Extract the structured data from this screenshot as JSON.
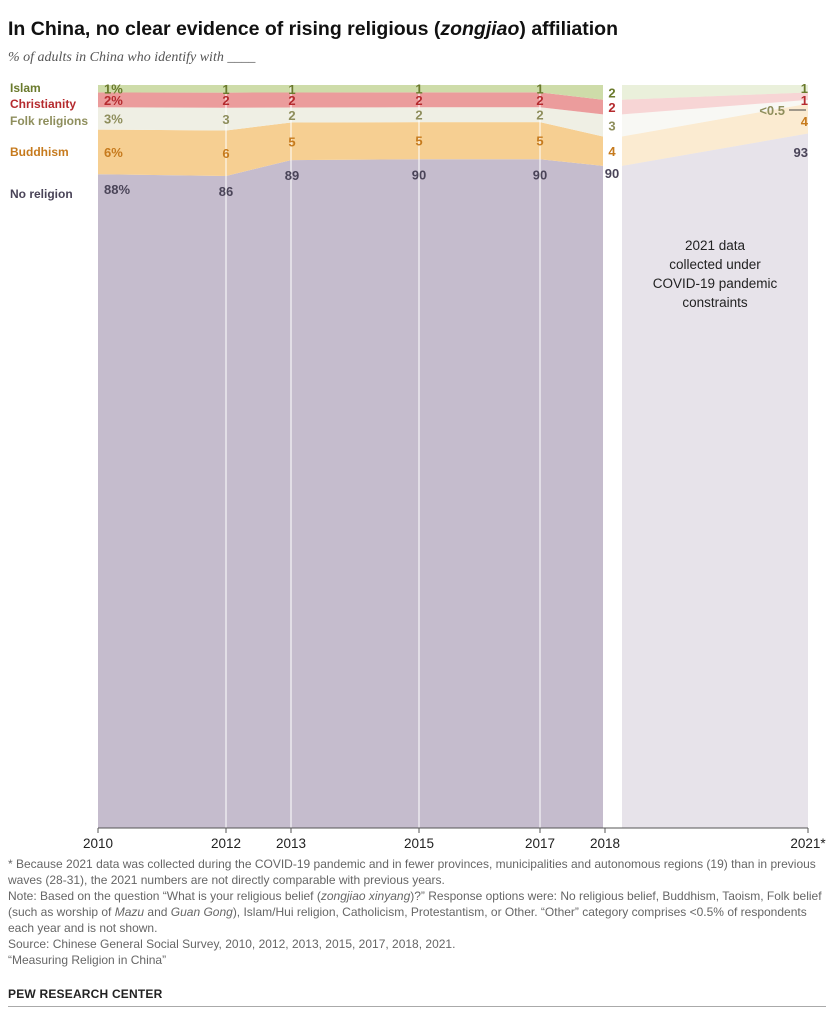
{
  "header": {
    "title_pre": "In China, no clear evidence of rising religious (",
    "title_em": "zongjiao",
    "title_post": ") affiliation",
    "subtitle": "% of adults in China who identify with ____"
  },
  "colors": {
    "no_religion": "#c5bccd",
    "buddhism": "#f6cf92",
    "folk": "#efefe4",
    "christianity": "#eb9c9c",
    "islam": "#cedca9",
    "label_no_religion": "#4a4458",
    "label_buddhism": "#c67a1d",
    "label_folk": "#8e8e5c",
    "label_christianity": "#b52a2e",
    "label_islam": "#6a7a2c"
  },
  "chart_data": {
    "type": "area",
    "stacked": true,
    "x": [
      "2010",
      "2012",
      "2013",
      "2015",
      "2017",
      "2018",
      "2021*"
    ],
    "series": [
      {
        "name": "No religion",
        "values": [
          88,
          86,
          89,
          90,
          90,
          90,
          93
        ],
        "labels": [
          "88%",
          "86",
          "89",
          "90",
          "90",
          "90",
          "93"
        ]
      },
      {
        "name": "Buddhism",
        "values": [
          6,
          6,
          5,
          5,
          5,
          4,
          4
        ],
        "labels": [
          "6%",
          "6",
          "5",
          "5",
          "5",
          "4",
          "4"
        ]
      },
      {
        "name": "Folk religions",
        "values": [
          3,
          3,
          2,
          2,
          2,
          3,
          0.5
        ],
        "labels": [
          "3%",
          "3",
          "2",
          "2",
          "2",
          "3",
          "<0.5"
        ]
      },
      {
        "name": "Christianity",
        "values": [
          2,
          2,
          2,
          2,
          2,
          2,
          1
        ],
        "labels": [
          "2%",
          "2",
          "2",
          "2",
          "2",
          "2",
          "1"
        ]
      },
      {
        "name": "Islam",
        "values": [
          1,
          1,
          1,
          1,
          1,
          2,
          1
        ],
        "labels": [
          "1%",
          "1",
          "1",
          "1",
          "1",
          "2",
          "1"
        ]
      }
    ],
    "ylim": [
      0,
      100
    ],
    "annotation": [
      "2021 data",
      "collected under",
      "COVID-19 pandemic",
      "constraints"
    ],
    "legend_placement": "left"
  },
  "footnotes": {
    "note1": "* Because 2021 data was collected during the COVID-19 pandemic and in fewer provinces, municipalities and autonomous regions (19) than in previous waves (28-31), the 2021 numbers are not directly comparable with previous years.",
    "note2_a": "Note: Based on the question “What is your religious belief (",
    "note2_em1": "zongjiao xinyang",
    "note2_b": ")?” Response options were: No religious belief, Buddhism, Taoism, Folk belief (such as worship of ",
    "note2_em2": "Mazu",
    "note2_c": " and ",
    "note2_em3": "Guan Gong",
    "note2_d": "), Islam/Hui religion, Catholicism, Protestantism, or Other. “Other” category comprises <0.5% of respondents each year and is not shown.",
    "source": "Source: Chinese General Social Survey, 2010, 2012, 2013, 2015, 2017, 2018, 2021.",
    "report": "“Measuring Religion in China”"
  },
  "brand": "PEW RESEARCH CENTER"
}
